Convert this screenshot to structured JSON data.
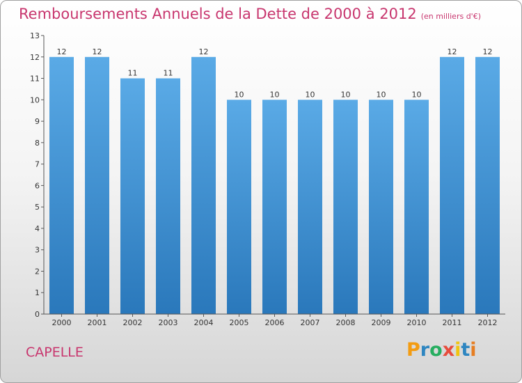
{
  "header": {
    "title": "Remboursements Annuels de la Dette de 2000 à 2012",
    "unit": "(en milliers d'€)"
  },
  "footer": {
    "place": "CAPELLE",
    "logo_letters": [
      "P",
      "r",
      "o",
      "x",
      "i",
      "t",
      "i"
    ],
    "logo_colors": [
      "#f39c12",
      "#2e86c1",
      "#27ae60",
      "#e74c3c",
      "#f1c40f",
      "#2e86c1",
      "#e67e22"
    ]
  },
  "colors": {
    "bar_top": "#5aaae6",
    "bar_bottom": "#2a78bb",
    "title": "#c8366e"
  },
  "chart_data": {
    "type": "bar",
    "title": "Remboursements Annuels de la Dette de 2000 à 2012",
    "subtitle": "(en milliers d'€)",
    "xlabel": "",
    "ylabel": "",
    "categories": [
      "2000",
      "2001",
      "2002",
      "2003",
      "2004",
      "2005",
      "2006",
      "2007",
      "2008",
      "2009",
      "2010",
      "2011",
      "2012"
    ],
    "values": [
      12,
      12,
      11,
      11,
      12,
      10,
      10,
      10,
      10,
      10,
      10,
      12,
      12
    ],
    "ylim": [
      0,
      13
    ],
    "yticks": [
      0,
      1,
      2,
      3,
      4,
      5,
      6,
      7,
      8,
      9,
      10,
      11,
      12,
      13
    ],
    "grid": false,
    "legend": "none"
  }
}
